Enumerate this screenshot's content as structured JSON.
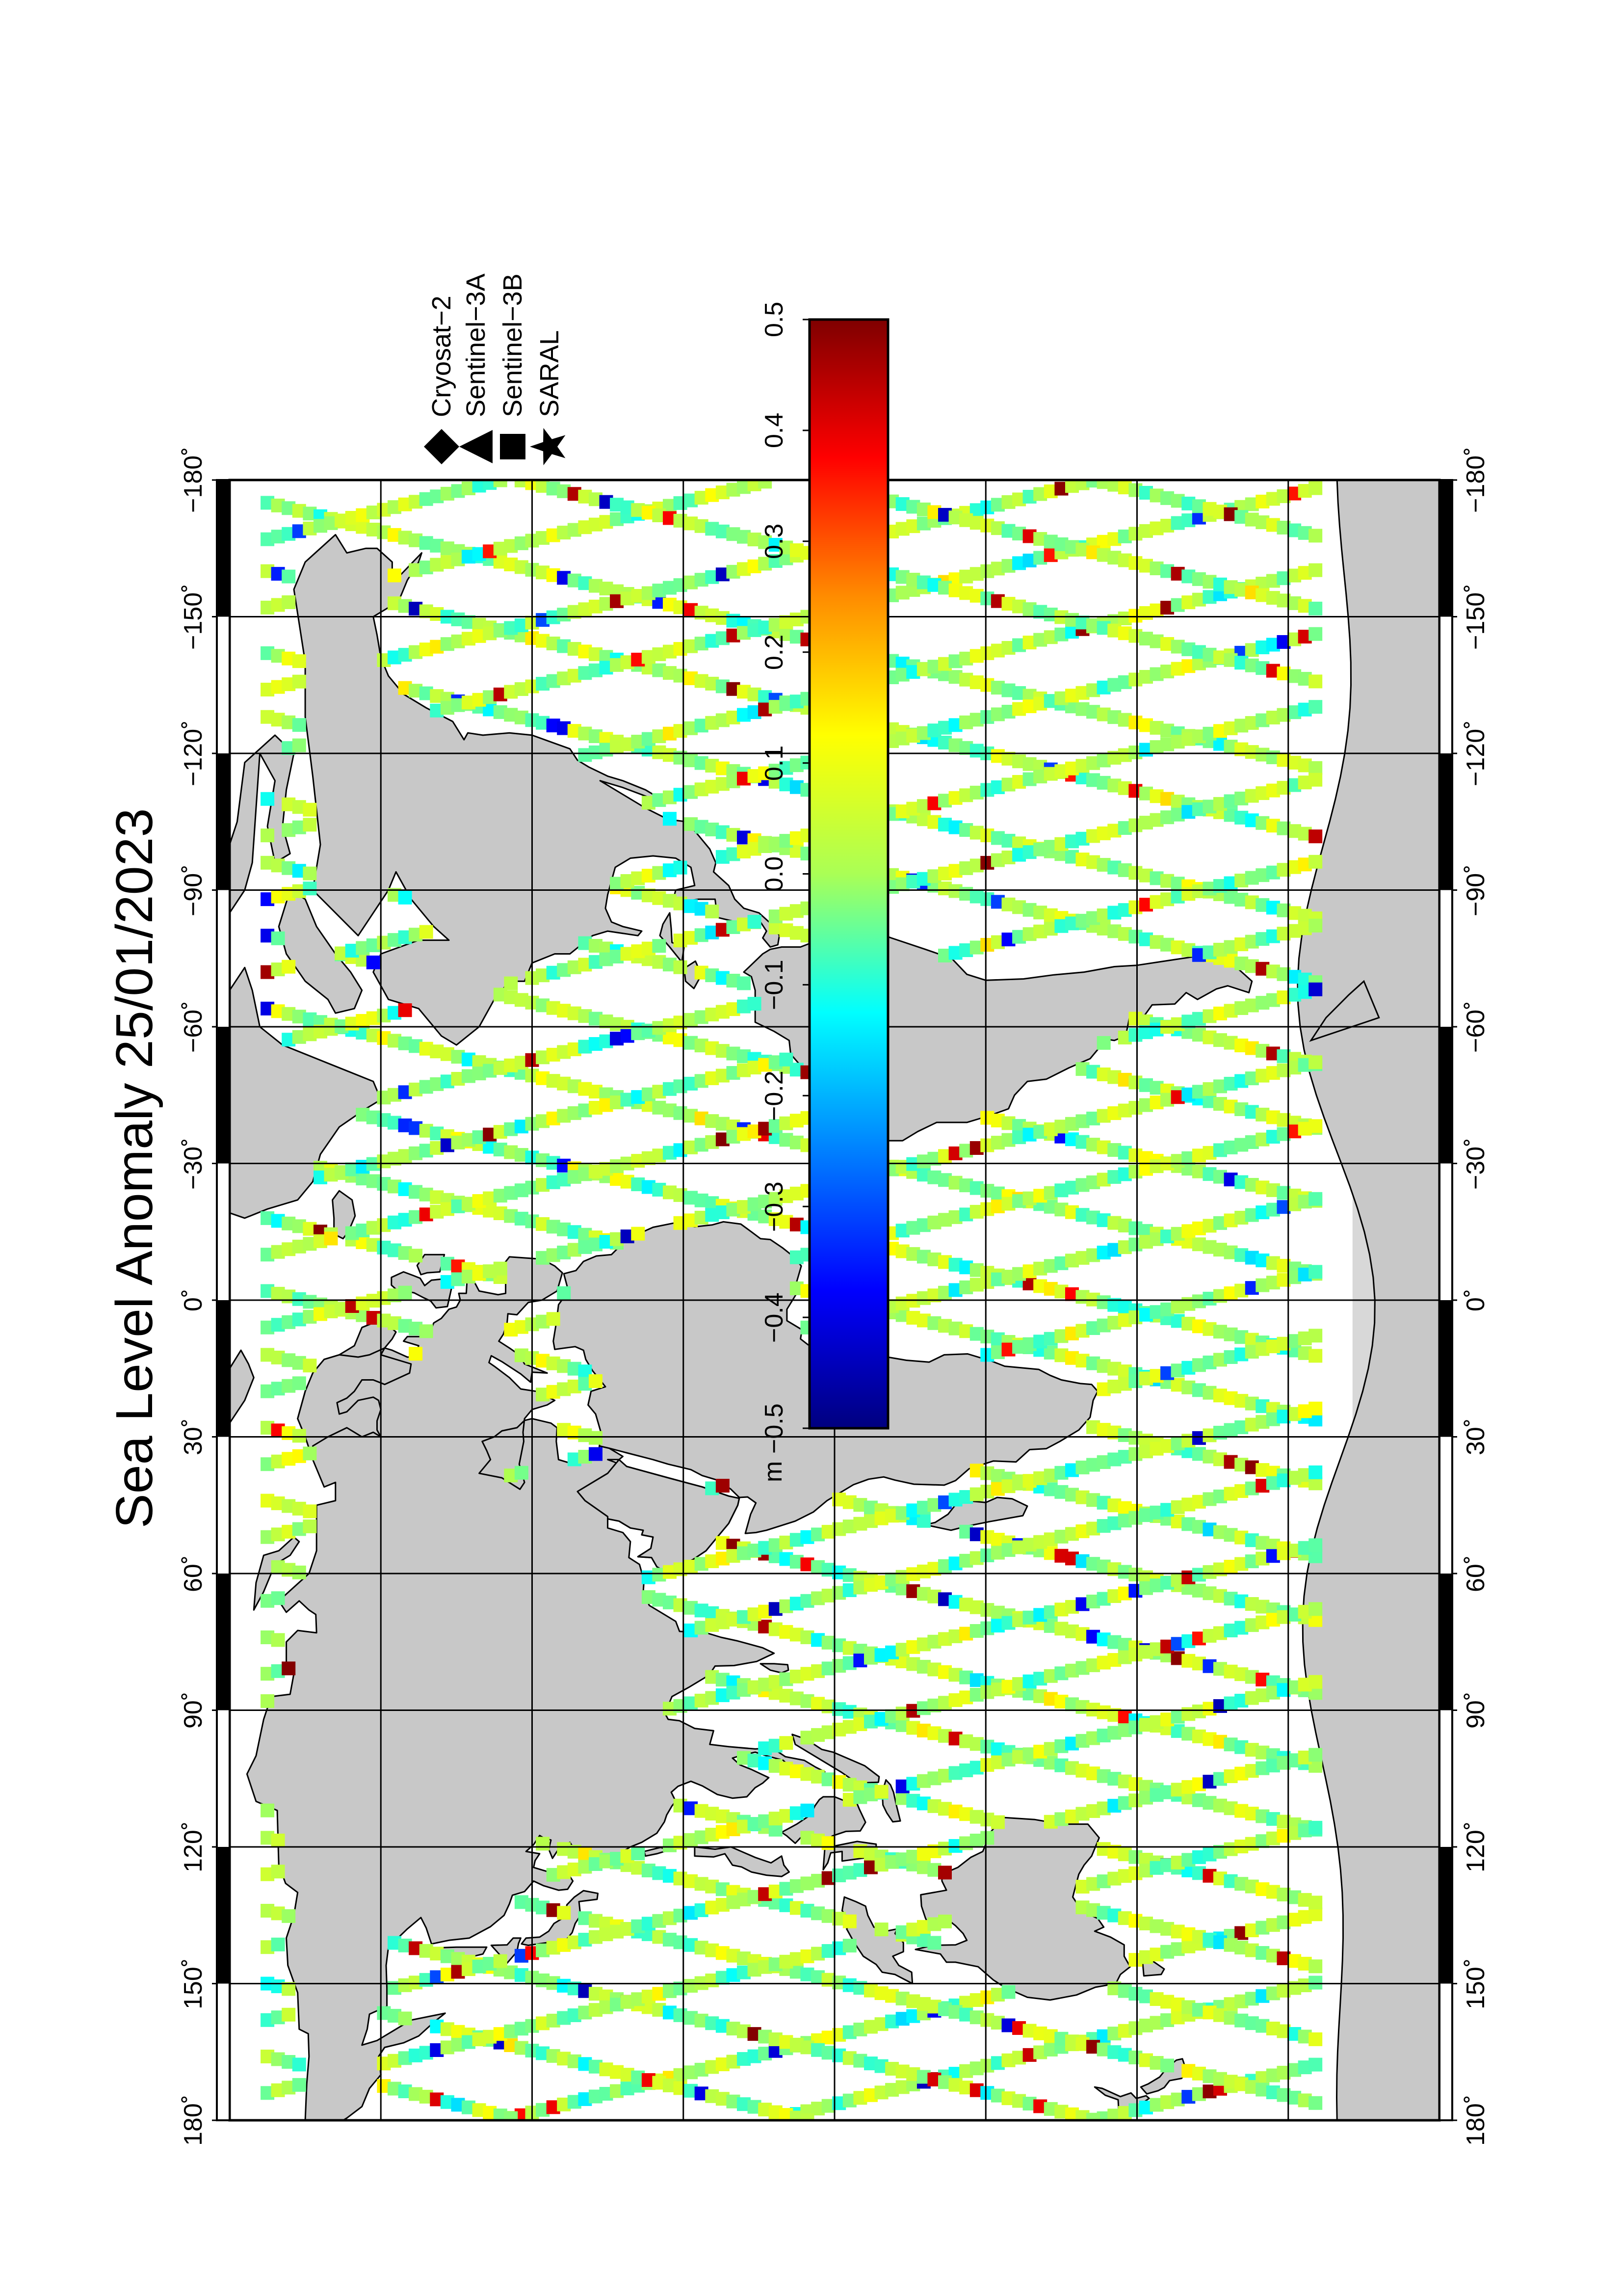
{
  "title": "Sea Level Anomaly 25/01/2023",
  "longitude_ticks": [
    "−180˚",
    "−150˚",
    "−120˚",
    "−90˚",
    "−60˚",
    "−30˚",
    "0˚",
    "30˚",
    "60˚",
    "90˚",
    "120˚",
    "150˚",
    "180˚"
  ],
  "legend": {
    "items": [
      {
        "symbol": "diamond",
        "label": "Cryosat−2"
      },
      {
        "symbol": "triangle",
        "label": "Sentinel−3A"
      },
      {
        "symbol": "square",
        "label": "Sentinel−3B"
      },
      {
        "symbol": "star",
        "label": "SARAL"
      }
    ]
  },
  "colorbar": {
    "unit": "m",
    "ticks": [
      "0.5",
      "0.4",
      "0.3",
      "0.2",
      "0.1",
      "0.0",
      "−0.1",
      "−0.2",
      "−0.3",
      "−0.4",
      "−0.5"
    ],
    "range": [
      -0.5,
      0.5
    ],
    "colormap": "jet-like",
    "colors": [
      "#7f0000",
      "#ff0000",
      "#ff8c00",
      "#ffff00",
      "#aaff55",
      "#00ffff",
      "#0080ff",
      "#0000ff",
      "#00007f"
    ]
  },
  "map": {
    "projection": "equirectangular (rotated 90°)",
    "lon_range": [
      -180,
      180
    ],
    "lat_range": [
      -80,
      80
    ],
    "land_color": "#c8c8c8",
    "ocean_color": "#ffffff",
    "ice_color": "#d8d8d8",
    "grid": true
  }
}
